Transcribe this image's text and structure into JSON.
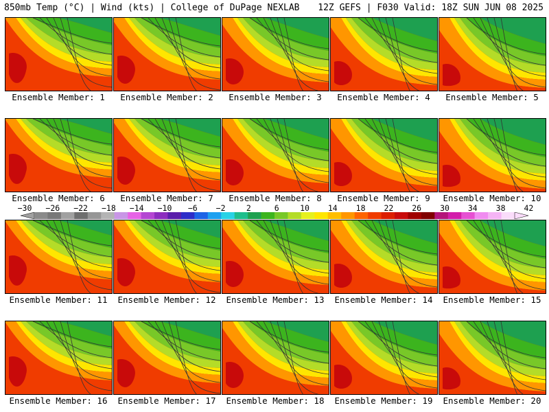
{
  "header": {
    "left": "850mb Temp (°C) | Wind (kts) | College of DuPage NEXLAB",
    "right": "12Z GEFS | F030 Valid: 18Z SUN JUN 08 2025"
  },
  "members": [
    "Ensemble Member: 1",
    "Ensemble Member: 2",
    "Ensemble Member: 3",
    "Ensemble Member: 4",
    "Ensemble Member: 5",
    "Ensemble Member: 6",
    "Ensemble Member: 7",
    "Ensemble Member: 8",
    "Ensemble Member: 9",
    "Ensemble Member: 10",
    "Ensemble Member: 11",
    "Ensemble Member: 12",
    "Ensemble Member: 13",
    "Ensemble Member: 14",
    "Ensemble Member: 15",
    "Ensemble Member: 16",
    "Ensemble Member: 17",
    "Ensemble Member: 18",
    "Ensemble Member: 19",
    "Ensemble Member: 20"
  ],
  "colorbar": {
    "labels": [
      "−30",
      "−26",
      "−22",
      "−18",
      "−14",
      "−10",
      "−6",
      "−2",
      "2",
      "6",
      "10",
      "14",
      "18",
      "22",
      "26",
      "30",
      "34",
      "38",
      "42"
    ],
    "colors": [
      "#8a8a8a",
      "#787878",
      "#a0a0a0",
      "#6e6e6e",
      "#969696",
      "#b4b4b4",
      "#c896e6",
      "#e664e6",
      "#b446d2",
      "#8c2dbe",
      "#5a1eaa",
      "#2d2dc8",
      "#1e64e6",
      "#1ea0f0",
      "#28d2e6",
      "#1ebe8c",
      "#1ea050",
      "#3cb41e",
      "#78c828",
      "#b4dc28",
      "#e6f01e",
      "#ffe600",
      "#ffbe00",
      "#ff9600",
      "#ff6400",
      "#f03c00",
      "#dc1e00",
      "#c80a0a",
      "#a00000",
      "#800000",
      "#b4147a",
      "#d21eaa",
      "#e650d2",
      "#f08cf0",
      "#f5b4f5",
      "#fadcfa"
    ]
  }
}
